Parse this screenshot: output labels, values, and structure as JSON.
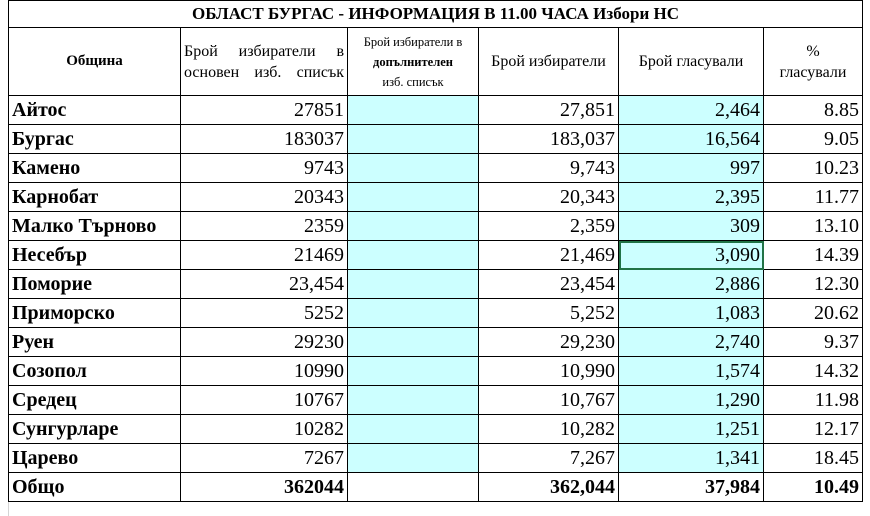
{
  "title": "ОБЛАСТ БУРГАС -  ИНФОРМАЦИЯ В 11.00 ЧАСА Избори НС",
  "headers": {
    "municipality": "Община",
    "main_list": "Брой  избиратели  в основен изб. списък",
    "extra_list_1": "Брой избиратели в",
    "extra_list_2": "допълнителен",
    "extra_list_3": "изб. списък",
    "voters": "Брой избиратели",
    "voted": "Брой  гласували",
    "percent_1": "%",
    "percent_2": "гласували"
  },
  "rows": [
    {
      "name": "Айтос",
      "main": "27851",
      "extra": "",
      "voters": "27,851",
      "voted": "2,464",
      "pct": "8.85"
    },
    {
      "name": "Бургас",
      "main": "183037",
      "extra": "",
      "voters": "183,037",
      "voted": "16,564",
      "pct": "9.05"
    },
    {
      "name": "Камено",
      "main": "9743",
      "extra": "",
      "voters": "9,743",
      "voted": "997",
      "pct": "10.23"
    },
    {
      "name": "Карнобат",
      "main": "20343",
      "extra": "",
      "voters": "20,343",
      "voted": "2,395",
      "pct": "11.77"
    },
    {
      "name": "Малко Търново",
      "main": "2359",
      "extra": "",
      "voters": "2,359",
      "voted": "309",
      "pct": "13.10"
    },
    {
      "name": "Несебър",
      "main": "21469",
      "extra": "",
      "voters": "21,469",
      "voted": "3,090",
      "pct": "14.39"
    },
    {
      "name": "Поморие",
      "main": "23,454",
      "extra": "",
      "voters": "23,454",
      "voted": "2,886",
      "pct": "12.30"
    },
    {
      "name": "Приморско",
      "main": "5252",
      "extra": "",
      "voters": "5,252",
      "voted": "1,083",
      "pct": "20.62"
    },
    {
      "name": "Руен",
      "main": "29230",
      "extra": "",
      "voters": "29,230",
      "voted": "2,740",
      "pct": "9.37"
    },
    {
      "name": "Созопол",
      "main": "10990",
      "extra": "",
      "voters": "10,990",
      "voted": "1,574",
      "pct": "14.32"
    },
    {
      "name": "Средец",
      "main": "10767",
      "extra": "",
      "voters": "10,767",
      "voted": "1,290",
      "pct": "11.98"
    },
    {
      "name": "Сунгурларе",
      "main": "10282",
      "extra": "",
      "voters": "10,282",
      "voted": "1,251",
      "pct": "12.17"
    },
    {
      "name": "Царево",
      "main": "7267",
      "extra": "",
      "voters": "7,267",
      "voted": "1,341",
      "pct": "18.45"
    }
  ],
  "total": {
    "name": "Общо",
    "main": "362044",
    "extra": "",
    "voters": "362,044",
    "voted": "37,984",
    "pct": "10.49"
  },
  "colors": {
    "highlight": "#ccffff",
    "selection": "#217346"
  }
}
